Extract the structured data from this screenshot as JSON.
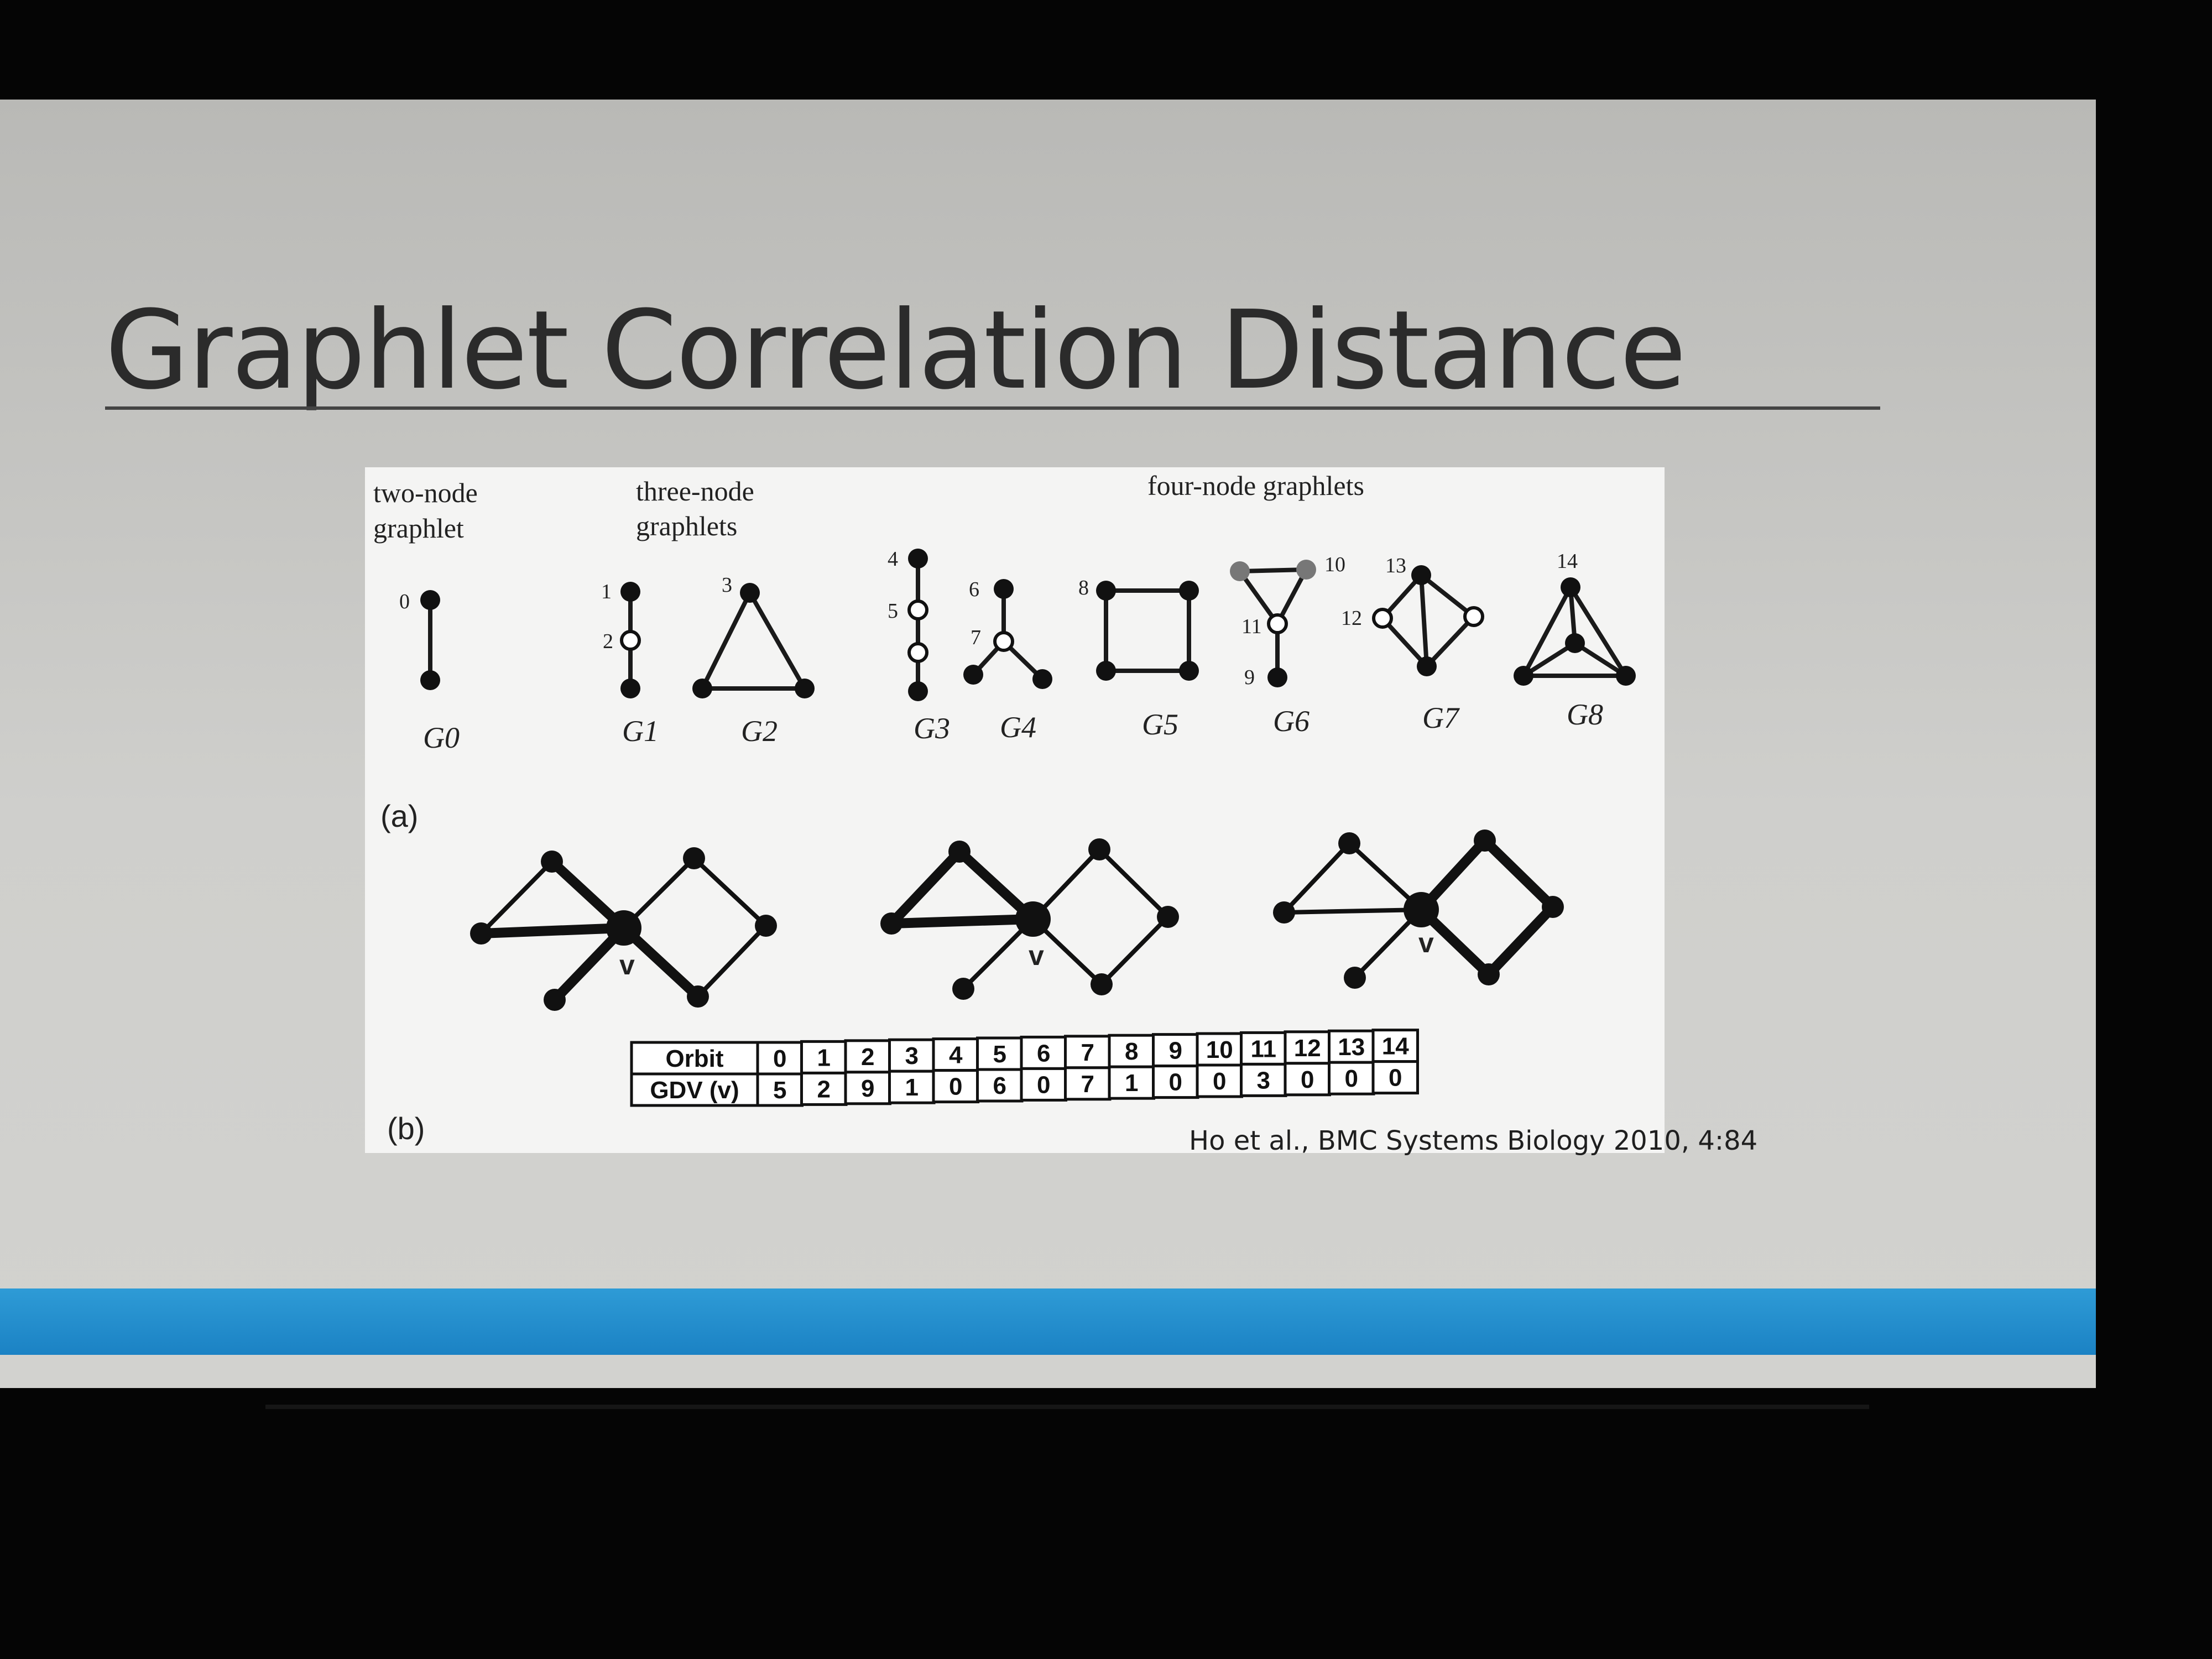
{
  "slide": {
    "title": "Graphlet Correlation Distance",
    "citation": "Ho et al., BMC Systems Biology 2010, 4:84"
  },
  "figure": {
    "header_two_node": [
      "two-node",
      "graphlet"
    ],
    "header_three_node": [
      "three-node",
      "graphlets"
    ],
    "header_four_node": "four-node graphlets",
    "panel_a_label": "(a)",
    "panel_b_label": "(b)",
    "graphlet_names": [
      "G0",
      "G1",
      "G2",
      "G3",
      "G4",
      "G5",
      "G6",
      "G7",
      "G8"
    ],
    "orbit_numbers": [
      "0",
      "1",
      "2",
      "3",
      "4",
      "5",
      "6",
      "7",
      "8",
      "9",
      "10",
      "11",
      "12",
      "13",
      "14"
    ],
    "node_label_v": "v",
    "table": {
      "row1_header": "Orbit",
      "row2_header": "GDV (v)",
      "orbits": [
        "0",
        "1",
        "2",
        "3",
        "4",
        "5",
        "6",
        "7",
        "8",
        "9",
        "10",
        "11",
        "12",
        "13",
        "14"
      ],
      "gdv": [
        "5",
        "2",
        "9",
        "1",
        "0",
        "6",
        "0",
        "7",
        "1",
        "0",
        "0",
        "3",
        "0",
        "0",
        "0"
      ]
    }
  },
  "colors": {
    "bottom_bar": "#1b82c4",
    "title_text": "#2b2b2b"
  }
}
